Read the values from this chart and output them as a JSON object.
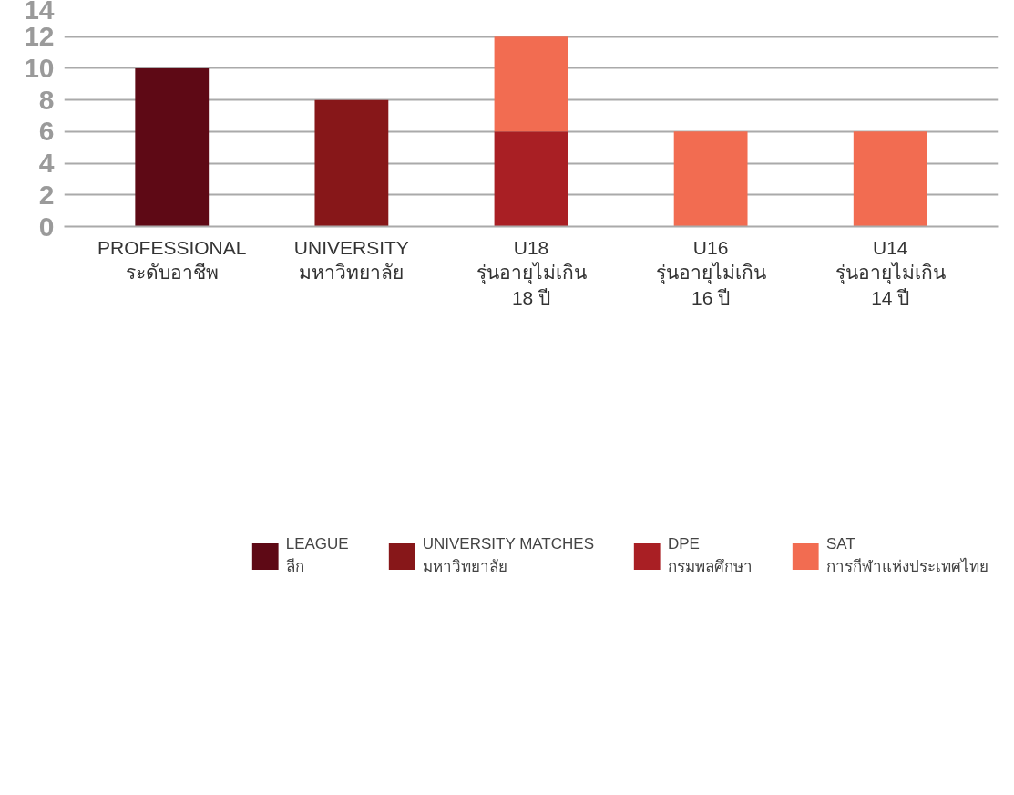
{
  "chart_data": {
    "type": "bar",
    "stacked": true,
    "categories": [
      "PROFESSIONAL\nระดับอาชีพ",
      "UNIVERSITY\nมหาวิทยาลัย",
      "U18\nรุ่นอายุไม่เกิน\n18 ปี",
      "U16\nรุ่นอายุไม่เกิน\n16 ปี",
      "U14\nรุ่นอายุไม่เกิน\n14 ปี"
    ],
    "series": [
      {
        "name": "LEAGUE\nลีก",
        "color": "#5e0915",
        "values": [
          10,
          null,
          null,
          null,
          null
        ]
      },
      {
        "name": "UNIVERSITY MATCHES\nมหาวิทยาลัย",
        "color": "#871719",
        "values": [
          null,
          8,
          null,
          null,
          null
        ]
      },
      {
        "name": "DPE\nกรมพลศึกษา",
        "color": "#a91f24",
        "values": [
          null,
          null,
          6,
          null,
          null
        ]
      },
      {
        "name": "SAT\nการกีฬาแห่งประเทศไทย",
        "color": "#f26c51",
        "values": [
          null,
          null,
          6,
          6,
          6
        ]
      }
    ],
    "ylim": [
      0,
      14
    ],
    "yticks": [
      0,
      2,
      4,
      6,
      8,
      10,
      12,
      14
    ],
    "grid": "y",
    "legend": "bottom"
  }
}
